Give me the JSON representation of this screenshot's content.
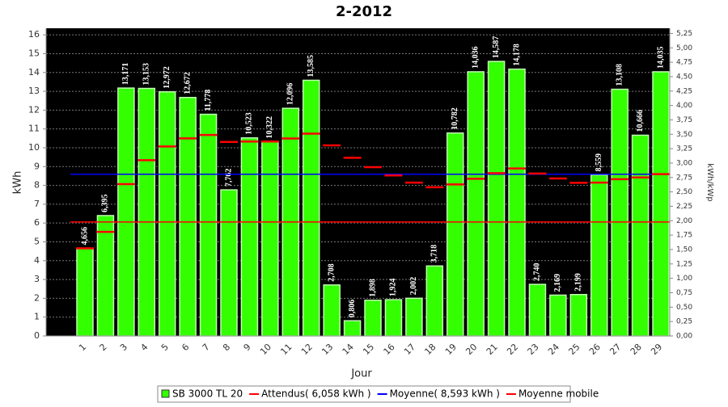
{
  "chart_data": {
    "type": "bar",
    "title": "2-2012",
    "x_label": "Jour",
    "y_label": "kWh",
    "y2_label": "kWh/kWp",
    "categories": [
      "1",
      "2",
      "3",
      "4",
      "5",
      "6",
      "7",
      "8",
      "9",
      "10",
      "11",
      "12",
      "13",
      "14",
      "15",
      "16",
      "17",
      "18",
      "19",
      "20",
      "21",
      "22",
      "23",
      "24",
      "25",
      "26",
      "27",
      "28",
      "29"
    ],
    "series": [
      {
        "name": "SB 3000 TL 20",
        "color": "#33ff00",
        "values": [
          4.656,
          6.395,
          13.171,
          13.153,
          12.972,
          12.672,
          11.778,
          7.762,
          10.523,
          10.322,
          12.096,
          13.585,
          2.708,
          0.806,
          1.898,
          1.924,
          2.002,
          3.718,
          10.782,
          14.036,
          14.587,
          14.178,
          2.74,
          2.169,
          2.199,
          8.559,
          13.108,
          10.666,
          14.035
        ],
        "value_labels": [
          "4,656",
          "6,395",
          "13,171",
          "13,153",
          "12,972",
          "12,672",
          "11,778",
          "7,762",
          "10,523",
          "10,322",
          "12,096",
          "13,585",
          "2,708",
          "0,806",
          "1,898",
          "1,924",
          "2,002",
          "3,718",
          "10,782",
          "14,036",
          "14,587",
          "14,178",
          "2,740",
          "2,169",
          "2,199",
          "8,559",
          "13,108",
          "10,666",
          "14,035"
        ]
      },
      {
        "name": "Attendus( 6,058 kWh )",
        "color": "#ff0000",
        "value": 6.058
      },
      {
        "name": "Moyenne( 8,593 kWh )",
        "color": "#0000ff",
        "value": 8.593
      },
      {
        "name": "Moyenne mobile",
        "color": "#ff0000",
        "values": [
          4.656,
          5.53,
          8.07,
          9.34,
          10.07,
          10.5,
          10.68,
          10.31,
          10.33,
          10.33,
          10.49,
          10.75,
          10.13,
          9.47,
          8.97,
          8.53,
          8.15,
          7.9,
          8.05,
          8.35,
          8.65,
          8.9,
          8.63,
          8.37,
          8.14,
          8.15,
          8.33,
          8.42,
          8.6
        ]
      }
    ],
    "ylim": [
      0,
      16.35
    ],
    "yticks": [
      0,
      1,
      2,
      3,
      4,
      5,
      6,
      7,
      8,
      9,
      10,
      11,
      12,
      13,
      14,
      15,
      16
    ],
    "y2lim": [
      0,
      5.34
    ],
    "y2ticks": [
      {
        "value": 0,
        "label": "0,00"
      },
      {
        "value": 0.25,
        "label": "0,25"
      },
      {
        "value": 0.5,
        "label": "0,50"
      },
      {
        "value": 0.75,
        "label": "0,75"
      },
      {
        "value": 1,
        "label": "1,00"
      },
      {
        "value": 1.25,
        "label": "1,25"
      },
      {
        "value": 1.5,
        "label": "1,50"
      },
      {
        "value": 1.75,
        "label": "1,75"
      },
      {
        "value": 2,
        "label": "2,00"
      },
      {
        "value": 2.25,
        "label": "2,25"
      },
      {
        "value": 2.5,
        "label": "2,50"
      },
      {
        "value": 2.75,
        "label": "2,75"
      },
      {
        "value": 3,
        "label": "3,00"
      },
      {
        "value": 3.25,
        "label": "3,25"
      },
      {
        "value": 3.5,
        "label": "3,50"
      },
      {
        "value": 3.75,
        "label": "3,75"
      },
      {
        "value": 4,
        "label": "4,00"
      },
      {
        "value": 4.25,
        "label": "4,25"
      },
      {
        "value": 4.5,
        "label": "4,50"
      },
      {
        "value": 4.75,
        "label": "4,75"
      },
      {
        "value": 5,
        "label": "5,00"
      },
      {
        "value": 5.25,
        "label": "5,25"
      }
    ],
    "grid": true
  }
}
